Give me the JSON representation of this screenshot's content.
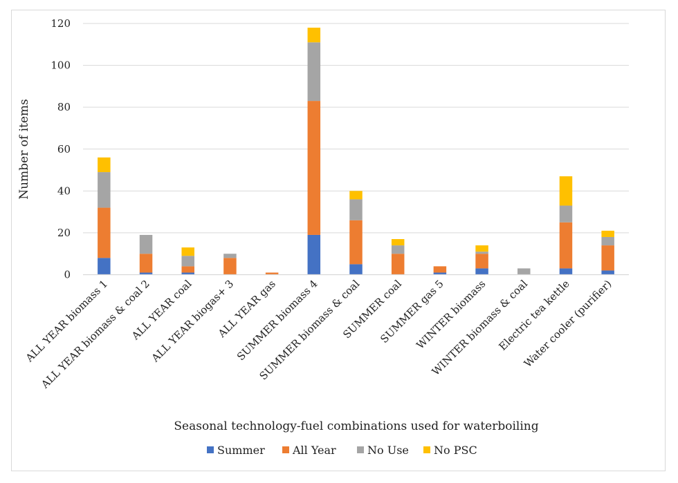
{
  "chart_data": {
    "type": "bar",
    "stacked": true,
    "title": "",
    "xlabel": "Seasonal technology-fuel combinations used for waterboiling",
    "ylabel": "Number of items",
    "ylim": [
      0,
      120
    ],
    "yticks": [
      0,
      20,
      40,
      60,
      80,
      100,
      120
    ],
    "grid": true,
    "legend_position": "bottom",
    "categories": [
      "ALL YEAR biomass 1",
      "ALL YEAR biomass & coal 2",
      "ALL YEAR coal",
      "ALL YEAR biogas+ 3",
      "ALL YEAR gas",
      "SUMMER biomass 4",
      "SUMMER biomass & coal",
      "SUMMER coal",
      "SUMMER gas 5",
      "WINTER biomass",
      "WINTER biomass & coal",
      "Electric tea kettle",
      "Water cooler (purifier)"
    ],
    "series": [
      {
        "name": "Summer",
        "color": "#4472c4",
        "values": [
          8,
          1,
          1,
          0,
          0,
          19,
          5,
          0,
          1,
          3,
          0,
          3,
          2
        ]
      },
      {
        "name": "All Year",
        "color": "#ed7d31",
        "values": [
          24,
          9,
          3,
          8,
          1,
          64,
          21,
          10,
          3,
          7,
          0,
          22,
          12
        ]
      },
      {
        "name": "No Use",
        "color": "#a5a5a5",
        "values": [
          17,
          9,
          5,
          2,
          0,
          28,
          10,
          4,
          0,
          1,
          3,
          8,
          4
        ]
      },
      {
        "name": "No PSC",
        "color": "#ffc000",
        "values": [
          7,
          0,
          4,
          0,
          0,
          7,
          4,
          3,
          0,
          3,
          0,
          14,
          3
        ]
      }
    ]
  }
}
